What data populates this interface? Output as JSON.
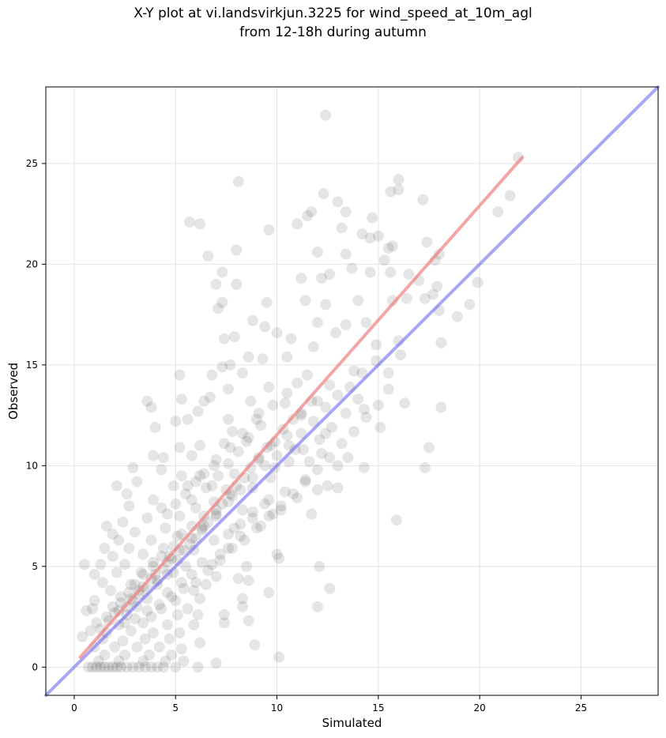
{
  "title_line1": "X-Y plot at vi.landsvirkjun.3225 for wind_speed_at_10m_agl",
  "title_line2": "from 12-18h during autumn",
  "chart_data": {
    "type": "scatter",
    "title": "X-Y plot at vi.landsvirkjun.3225 for wind_speed_at_10m_agl from 12-18h during autumn",
    "xlabel": "Simulated",
    "ylabel": "Observed",
    "xlim": [
      -1.4,
      28.8
    ],
    "ylim": [
      -1.4,
      28.8
    ],
    "xticks": [
      0,
      5,
      10,
      15,
      20,
      25
    ],
    "yticks": [
      0,
      5,
      10,
      15,
      20,
      25
    ],
    "grid": true,
    "point_color": "#000000",
    "regression_color": "#f08080",
    "identity_color": "#6a6aee",
    "regression_line": {
      "x": [
        0.3,
        22.1
      ],
      "y": [
        0.5,
        25.3
      ]
    },
    "identity_line": {
      "x": [
        -1.4,
        28.8
      ],
      "y": [
        -1.4,
        28.8
      ]
    },
    "points": [
      [
        12.4,
        27.4
      ],
      [
        21.9,
        25.3
      ],
      [
        8.1,
        24.1
      ],
      [
        16.0,
        24.2
      ],
      [
        12.3,
        23.5
      ],
      [
        15.6,
        23.6
      ],
      [
        16.0,
        23.7
      ],
      [
        13.0,
        23.1
      ],
      [
        21.5,
        23.4
      ],
      [
        17.2,
        23.2
      ],
      [
        5.7,
        22.1
      ],
      [
        6.2,
        22.0
      ],
      [
        11.5,
        22.4
      ],
      [
        11.7,
        22.6
      ],
      [
        13.4,
        22.6
      ],
      [
        14.7,
        22.3
      ],
      [
        20.9,
        22.6
      ],
      [
        11.0,
        22.0
      ],
      [
        9.6,
        21.7
      ],
      [
        13.2,
        21.8
      ],
      [
        14.2,
        21.5
      ],
      [
        14.6,
        21.3
      ],
      [
        15.0,
        21.4
      ],
      [
        17.4,
        21.1
      ],
      [
        6.6,
        20.4
      ],
      [
        8.0,
        20.7
      ],
      [
        12.0,
        20.6
      ],
      [
        13.4,
        20.5
      ],
      [
        15.5,
        20.8
      ],
      [
        15.7,
        20.9
      ],
      [
        18.0,
        20.5
      ],
      [
        17.8,
        20.2
      ],
      [
        15.3,
        20.2
      ],
      [
        7.3,
        19.6
      ],
      [
        7.0,
        19.0
      ],
      [
        8.0,
        19.0
      ],
      [
        11.2,
        19.3
      ],
      [
        12.2,
        19.3
      ],
      [
        12.6,
        19.5
      ],
      [
        13.7,
        19.8
      ],
      [
        14.6,
        19.6
      ],
      [
        15.6,
        19.6
      ],
      [
        16.5,
        19.5
      ],
      [
        17.0,
        19.2
      ],
      [
        19.9,
        19.1
      ],
      [
        12.4,
        18.0
      ],
      [
        11.4,
        18.2
      ],
      [
        9.5,
        18.1
      ],
      [
        7.3,
        18.1
      ],
      [
        7.1,
        17.8
      ],
      [
        14.0,
        18.2
      ],
      [
        15.7,
        18.2
      ],
      [
        16.4,
        18.3
      ],
      [
        17.3,
        18.3
      ],
      [
        17.7,
        18.5
      ],
      [
        18.9,
        17.4
      ],
      [
        19.5,
        18.0
      ],
      [
        18.0,
        17.7
      ],
      [
        17.9,
        18.9
      ],
      [
        12.0,
        17.1
      ],
      [
        13.4,
        17.0
      ],
      [
        12.9,
        16.6
      ],
      [
        10.0,
        16.6
      ],
      [
        9.4,
        16.9
      ],
      [
        8.8,
        17.2
      ],
      [
        7.9,
        16.4
      ],
      [
        7.4,
        16.3
      ],
      [
        10.7,
        16.3
      ],
      [
        14.4,
        17.1
      ],
      [
        16.0,
        16.2
      ],
      [
        18.1,
        16.1
      ],
      [
        14.9,
        16.0
      ],
      [
        11.8,
        15.9
      ],
      [
        10.5,
        15.4
      ],
      [
        9.3,
        15.3
      ],
      [
        8.6,
        15.4
      ],
      [
        7.7,
        15.0
      ],
      [
        7.3,
        14.9
      ],
      [
        6.8,
        14.5
      ],
      [
        5.2,
        14.5
      ],
      [
        8.3,
        14.6
      ],
      [
        11.5,
        14.5
      ],
      [
        13.8,
        14.7
      ],
      [
        15.5,
        14.6
      ],
      [
        16.1,
        15.5
      ],
      [
        12.6,
        14.0
      ],
      [
        9.6,
        13.9
      ],
      [
        7.6,
        13.8
      ],
      [
        6.7,
        13.4
      ],
      [
        6.4,
        13.2
      ],
      [
        5.3,
        13.3
      ],
      [
        3.6,
        13.2
      ],
      [
        3.8,
        12.9
      ],
      [
        6.1,
        12.7
      ],
      [
        8.7,
        13.2
      ],
      [
        10.4,
        13.1
      ],
      [
        12.0,
        13.2
      ],
      [
        14.3,
        12.8
      ],
      [
        16.3,
        13.1
      ],
      [
        18.1,
        12.9
      ],
      [
        11.2,
        12.5
      ],
      [
        9.1,
        12.6
      ],
      [
        7.6,
        12.3
      ],
      [
        5.6,
        12.3
      ],
      [
        5.0,
        12.2
      ],
      [
        4.0,
        11.9
      ],
      [
        7.8,
        11.7
      ],
      [
        10.5,
        11.5
      ],
      [
        12.4,
        11.6
      ],
      [
        15.1,
        11.9
      ],
      [
        9.7,
        11.0
      ],
      [
        8.5,
        11.2
      ],
      [
        7.4,
        11.1
      ],
      [
        6.2,
        11.0
      ],
      [
        5.2,
        10.9
      ],
      [
        10.9,
        10.8
      ],
      [
        12.2,
        10.6
      ],
      [
        13.5,
        10.4
      ],
      [
        17.5,
        10.9
      ],
      [
        3.9,
        10.5
      ],
      [
        4.4,
        10.4
      ],
      [
        5.8,
        10.5
      ],
      [
        7.0,
        10.3
      ],
      [
        9.1,
        10.3
      ],
      [
        11.6,
        10.2
      ],
      [
        13.0,
        10.0
      ],
      [
        14.3,
        9.9
      ],
      [
        17.3,
        9.9
      ],
      [
        2.9,
        9.9
      ],
      [
        4.3,
        9.8
      ],
      [
        5.3,
        9.5
      ],
      [
        6.4,
        9.6
      ],
      [
        7.9,
        9.6
      ],
      [
        9.7,
        9.4
      ],
      [
        11.4,
        9.3
      ],
      [
        12.5,
        9.0
      ],
      [
        2.1,
        9.0
      ],
      [
        3.1,
        9.2
      ],
      [
        4.9,
        9.0
      ],
      [
        6.8,
        9.0
      ],
      [
        8.8,
        8.9
      ],
      [
        10.4,
        8.7
      ],
      [
        12.0,
        8.8
      ],
      [
        13.0,
        8.9
      ],
      [
        2.6,
        8.6
      ],
      [
        3.9,
        8.3
      ],
      [
        5.8,
        8.3
      ],
      [
        7.8,
        8.5
      ],
      [
        9.6,
        8.3
      ],
      [
        11.0,
        8.4
      ],
      [
        2.7,
        8.0
      ],
      [
        4.3,
        7.9
      ],
      [
        6.0,
        7.9
      ],
      [
        8.3,
        7.8
      ],
      [
        10.2,
        7.8
      ],
      [
        11.7,
        7.6
      ],
      [
        15.9,
        7.3
      ],
      [
        1.6,
        7.0
      ],
      [
        2.4,
        7.2
      ],
      [
        3.6,
        7.4
      ],
      [
        5.2,
        7.5
      ],
      [
        7.0,
        7.5
      ],
      [
        8.8,
        7.4
      ],
      [
        9.8,
        7.6
      ],
      [
        1.9,
        6.6
      ],
      [
        3.0,
        6.7
      ],
      [
        4.5,
        6.9
      ],
      [
        6.3,
        6.9
      ],
      [
        7.9,
        6.9
      ],
      [
        9.2,
        7.0
      ],
      [
        2.2,
        6.3
      ],
      [
        3.8,
        6.3
      ],
      [
        5.1,
        6.5
      ],
      [
        6.9,
        6.3
      ],
      [
        8.2,
        6.5
      ],
      [
        1.5,
        5.9
      ],
      [
        2.7,
        5.9
      ],
      [
        4.4,
        5.9
      ],
      [
        5.9,
        5.8
      ],
      [
        7.6,
        5.9
      ],
      [
        1.9,
        5.5
      ],
      [
        3.4,
        5.6
      ],
      [
        4.8,
        5.4
      ],
      [
        6.3,
        5.2
      ],
      [
        7.2,
        5.6
      ],
      [
        10.0,
        5.6
      ],
      [
        10.1,
        5.4
      ],
      [
        0.5,
        5.1
      ],
      [
        1.3,
        5.1
      ],
      [
        2.5,
        5.1
      ],
      [
        3.9,
        5.2
      ],
      [
        5.5,
        5.0
      ],
      [
        6.8,
        5.1
      ],
      [
        8.5,
        5.0
      ],
      [
        12.1,
        5.0
      ],
      [
        1.0,
        4.6
      ],
      [
        2.1,
        4.7
      ],
      [
        3.3,
        4.7
      ],
      [
        4.6,
        4.6
      ],
      [
        5.8,
        4.6
      ],
      [
        7.0,
        4.5
      ],
      [
        8.1,
        4.4
      ],
      [
        8.6,
        4.3
      ],
      [
        1.4,
        4.2
      ],
      [
        2.8,
        4.1
      ],
      [
        4.1,
        4.1
      ],
      [
        5.3,
        4.2
      ],
      [
        6.5,
        4.1
      ],
      [
        1.8,
        3.8
      ],
      [
        3.2,
        3.8
      ],
      [
        4.6,
        3.7
      ],
      [
        5.9,
        3.8
      ],
      [
        9.6,
        3.7
      ],
      [
        12.6,
        3.9
      ],
      [
        1.0,
        3.3
      ],
      [
        2.3,
        3.5
      ],
      [
        3.6,
        3.4
      ],
      [
        5.0,
        3.3
      ],
      [
        6.2,
        3.4
      ],
      [
        8.3,
        3.4
      ],
      [
        0.9,
        2.9
      ],
      [
        1.9,
        3.0
      ],
      [
        3.1,
        3.0
      ],
      [
        4.3,
        2.9
      ],
      [
        5.6,
        2.9
      ],
      [
        8.3,
        3.0
      ],
      [
        12.0,
        3.0
      ],
      [
        0.6,
        2.8
      ],
      [
        1.6,
        2.5
      ],
      [
        2.6,
        2.6
      ],
      [
        3.8,
        2.5
      ],
      [
        5.1,
        2.6
      ],
      [
        6.1,
        2.6
      ],
      [
        7.4,
        2.6
      ],
      [
        1.1,
        2.2
      ],
      [
        2.2,
        2.1
      ],
      [
        3.4,
        2.2
      ],
      [
        4.6,
        2.1
      ],
      [
        5.9,
        2.1
      ],
      [
        7.4,
        2.2
      ],
      [
        8.6,
        2.3
      ],
      [
        0.8,
        1.8
      ],
      [
        1.6,
        1.7
      ],
      [
        2.8,
        1.8
      ],
      [
        3.9,
        1.7
      ],
      [
        5.2,
        1.7
      ],
      [
        0.4,
        1.5
      ],
      [
        1.4,
        1.4
      ],
      [
        2.4,
        1.3
      ],
      [
        3.5,
        1.4
      ],
      [
        4.7,
        1.4
      ],
      [
        6.2,
        1.2
      ],
      [
        1.0,
        1.0
      ],
      [
        2.0,
        1.0
      ],
      [
        3.1,
        1.0
      ],
      [
        4.2,
        1.0
      ],
      [
        5.3,
        0.9
      ],
      [
        8.9,
        1.1
      ],
      [
        1.5,
        0.6
      ],
      [
        2.5,
        0.6
      ],
      [
        3.7,
        0.6
      ],
      [
        4.8,
        0.6
      ],
      [
        1.2,
        0.3
      ],
      [
        2.2,
        0.3
      ],
      [
        3.4,
        0.3
      ],
      [
        4.5,
        0.3
      ],
      [
        5.4,
        0.3
      ],
      [
        7.0,
        0.2
      ],
      [
        10.1,
        0.5
      ],
      [
        0.7,
        0.0
      ],
      [
        0.9,
        0.0
      ],
      [
        1.1,
        0.0
      ],
      [
        1.3,
        0.0
      ],
      [
        1.5,
        0.0
      ],
      [
        1.7,
        0.0
      ],
      [
        1.9,
        0.0
      ],
      [
        2.1,
        0.0
      ],
      [
        2.3,
        0.0
      ],
      [
        2.6,
        0.0
      ],
      [
        2.9,
        0.0
      ],
      [
        3.2,
        0.0
      ],
      [
        3.5,
        0.0
      ],
      [
        3.8,
        0.0
      ],
      [
        4.1,
        0.0
      ],
      [
        4.4,
        0.0
      ],
      [
        5.0,
        0.0
      ],
      [
        6.1,
        0.0
      ],
      [
        4.9,
        4.7
      ],
      [
        5.1,
        5.3
      ],
      [
        5.4,
        5.8
      ],
      [
        5.7,
        6.1
      ],
      [
        6.0,
        6.4
      ],
      [
        6.3,
        6.8
      ],
      [
        6.6,
        7.2
      ],
      [
        7.0,
        7.8
      ],
      [
        7.3,
        8.1
      ],
      [
        7.7,
        8.6
      ],
      [
        8.0,
        9.0
      ],
      [
        8.4,
        9.4
      ],
      [
        8.7,
        9.9
      ],
      [
        9.1,
        10.4
      ],
      [
        9.5,
        10.9
      ],
      [
        9.9,
        11.2
      ],
      [
        10.3,
        11.8
      ],
      [
        10.8,
        12.3
      ],
      [
        11.2,
        12.6
      ],
      [
        11.7,
        13.2
      ],
      [
        4.1,
        4.3
      ],
      [
        4.4,
        4.9
      ],
      [
        4.7,
        5.5
      ],
      [
        3.8,
        4.4
      ],
      [
        3.6,
        3.9
      ],
      [
        3.2,
        3.6
      ],
      [
        2.9,
        3.3
      ],
      [
        2.6,
        3.0
      ],
      [
        6.5,
        8.9
      ],
      [
        7.1,
        9.5
      ],
      [
        7.6,
        10.1
      ],
      [
        8.1,
        10.7
      ],
      [
        8.6,
        11.4
      ],
      [
        9.2,
        12.0
      ],
      [
        6.0,
        9.2
      ],
      [
        5.5,
        8.6
      ],
      [
        5.0,
        8.1
      ],
      [
        4.6,
        7.6
      ],
      [
        9.9,
        9.9
      ],
      [
        10.6,
        10.2
      ],
      [
        11.3,
        10.8
      ],
      [
        12.1,
        11.3
      ],
      [
        12.7,
        11.9
      ],
      [
        13.4,
        12.6
      ],
      [
        14.0,
        13.3
      ],
      [
        9.4,
        8.1
      ],
      [
        8.8,
        7.7
      ],
      [
        8.2,
        7.1
      ],
      [
        7.6,
        6.6
      ],
      [
        10.5,
        13.6
      ],
      [
        11.0,
        14.1
      ],
      [
        9.8,
        13.0
      ],
      [
        9.0,
        12.3
      ],
      [
        8.3,
        11.6
      ],
      [
        7.7,
        10.9
      ],
      [
        6.9,
        10.0
      ],
      [
        6.2,
        9.5
      ],
      [
        5.6,
        9.0
      ],
      [
        4.9,
        6.0
      ],
      [
        5.3,
        6.6
      ],
      [
        5.8,
        7.0
      ],
      [
        6.4,
        7.5
      ],
      [
        6.9,
        8.2
      ],
      [
        7.5,
        8.8
      ],
      [
        4.3,
        5.5
      ],
      [
        3.9,
        5.0
      ],
      [
        3.4,
        4.6
      ],
      [
        3.0,
        4.1
      ],
      [
        2.7,
        3.7
      ],
      [
        2.3,
        3.2
      ],
      [
        2.0,
        2.7
      ],
      [
        1.7,
        2.3
      ],
      [
        1.3,
        1.9
      ],
      [
        2.5,
        2.2
      ],
      [
        3.0,
        2.4
      ],
      [
        3.6,
        2.8
      ],
      [
        4.2,
        3.1
      ],
      [
        4.8,
        3.5
      ],
      [
        5.4,
        3.9
      ],
      [
        6.0,
        4.2
      ],
      [
        6.6,
        4.8
      ],
      [
        7.2,
        5.3
      ],
      [
        7.8,
        5.9
      ],
      [
        8.4,
        6.3
      ],
      [
        9.0,
        6.9
      ],
      [
        9.6,
        7.5
      ],
      [
        10.2,
        8.0
      ],
      [
        10.8,
        8.6
      ],
      [
        11.4,
        9.2
      ],
      [
        12.0,
        9.8
      ],
      [
        12.6,
        10.4
      ],
      [
        13.2,
        11.1
      ],
      [
        13.8,
        11.7
      ],
      [
        14.4,
        12.4
      ],
      [
        15.0,
        13.0
      ],
      [
        15.5,
        13.8
      ],
      [
        14.9,
        15.2
      ],
      [
        14.2,
        14.6
      ],
      [
        13.6,
        13.9
      ],
      [
        13.0,
        13.5
      ],
      [
        12.4,
        12.9
      ],
      [
        11.8,
        12.2
      ],
      [
        11.2,
        11.6
      ],
      [
        10.6,
        11.0
      ],
      [
        10.0,
        10.5
      ],
      [
        9.4,
        10.0
      ],
      [
        8.8,
        9.4
      ],
      [
        8.2,
        8.8
      ],
      [
        7.6,
        8.2
      ],
      [
        7.0,
        7.6
      ],
      [
        6.4,
        7.0
      ],
      [
        5.8,
        6.4
      ],
      [
        5.2,
        5.8
      ],
      [
        4.6,
        5.2
      ],
      [
        4.0,
        4.6
      ],
      [
        3.4,
        4.0
      ],
      [
        2.8,
        3.4
      ],
      [
        2.2,
        2.8
      ]
    ]
  }
}
